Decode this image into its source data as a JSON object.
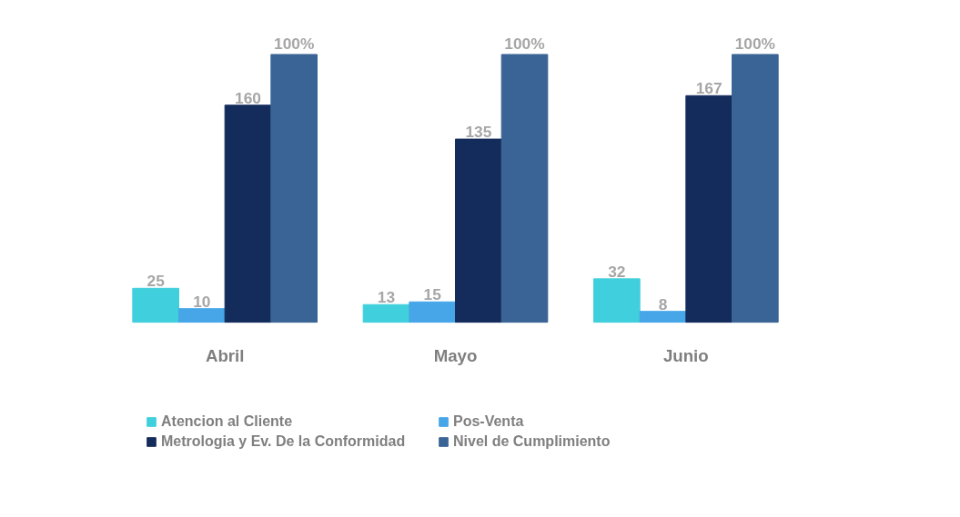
{
  "chart_data": {
    "type": "bar",
    "categories": [
      "Abril",
      "Mayo",
      "Junio"
    ],
    "series": [
      {
        "name": "Atencion al Cliente",
        "color": "#40cfdc",
        "values": [
          25,
          13,
          32
        ]
      },
      {
        "name": "Pos-Venta",
        "color": "#46a6e8",
        "values": [
          10,
          15,
          8
        ]
      },
      {
        "name": "Metrologia y Ev. De la Conformidad",
        "color": "#142c5c",
        "values": [
          160,
          135,
          167
        ]
      },
      {
        "name": "Nivel de Cumplimiento",
        "color": "#3a6495",
        "values": [
          100,
          100,
          100
        ],
        "axis": "y2",
        "value_labels": [
          "100%",
          "100%",
          "100%"
        ]
      }
    ],
    "tick_labels": "x",
    "data_labels": true,
    "legend": "bottom"
  }
}
